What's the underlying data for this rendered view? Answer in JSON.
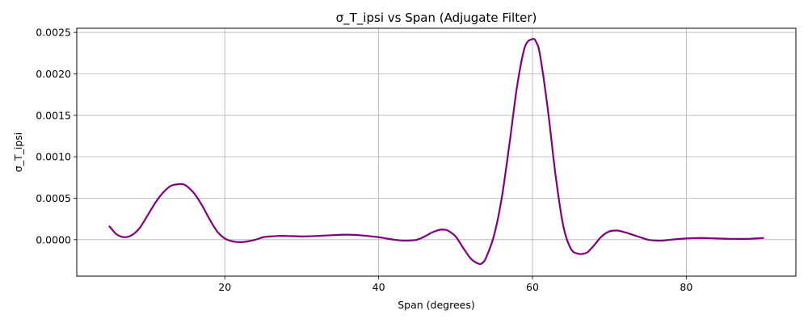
{
  "chart_data": {
    "type": "line",
    "title": "σ_T_ipsi vs Span (Adjugate Filter)",
    "xlabel": "Span (degrees)",
    "ylabel": "σ_T_ipsi",
    "xlim": [
      0.75,
      94.25
    ],
    "ylim": [
      -0.00044,
      0.00255
    ],
    "xticks": [
      20,
      40,
      60,
      80
    ],
    "xtick_labels": [
      "20",
      "40",
      "60",
      "80"
    ],
    "yticks": [
      0.0,
      0.0005,
      0.001,
      0.0015,
      0.002,
      0.0025
    ],
    "ytick_labels": [
      "0.0000",
      "0.0005",
      "0.0010",
      "0.0015",
      "0.0020",
      "0.0025"
    ],
    "grid": true,
    "series": [
      {
        "color": "#800080",
        "x": [
          5,
          6,
          7,
          8,
          9,
          10,
          11,
          12,
          13,
          14,
          14.5,
          15,
          16,
          17,
          18,
          19,
          20,
          21,
          22,
          23,
          24,
          25,
          26,
          27,
          28,
          30,
          32,
          34,
          36,
          38,
          40,
          41,
          42,
          43,
          44,
          45,
          46,
          47,
          48,
          48.5,
          49,
          50,
          51,
          52,
          53,
          53.5,
          54,
          55,
          56,
          57,
          58,
          59,
          60,
          60.5,
          61,
          62,
          63,
          64,
          65,
          66,
          67,
          67.5,
          68,
          69,
          70,
          71,
          72,
          73,
          74,
          75,
          76,
          77,
          78,
          80,
          82,
          84,
          86,
          88,
          90
        ],
        "y": [
          0.00016,
          6e-05,
          3e-05,
          6e-05,
          0.00015,
          0.0003,
          0.00045,
          0.00057,
          0.00065,
          0.00067,
          0.00067,
          0.00065,
          0.00056,
          0.00042,
          0.00025,
          0.0001,
          1.5e-05,
          -2e-05,
          -3e-05,
          -2e-05,
          0.0,
          3e-05,
          4e-05,
          4.5e-05,
          4.5e-05,
          4e-05,
          4.5e-05,
          5.5e-05,
          6e-05,
          5e-05,
          3e-05,
          1.5e-05,
          0.0,
          -1e-05,
          -1e-05,
          0.0,
          4e-05,
          9e-05,
          0.00012,
          0.00012,
          0.00011,
          4e-05,
          -0.0001,
          -0.00023,
          -0.00029,
          -0.00028,
          -0.00021,
          5e-05,
          0.0005,
          0.00115,
          0.00185,
          0.00232,
          0.00242,
          0.00238,
          0.00222,
          0.00157,
          0.00078,
          0.00017,
          -0.00011,
          -0.00017,
          -0.00016,
          -0.00012,
          -7e-05,
          4e-05,
          0.0001,
          0.00011,
          9e-05,
          6e-05,
          3e-05,
          0.0,
          -1e-05,
          -1e-05,
          0.0,
          1.5e-05,
          2e-05,
          1.5e-05,
          1e-05,
          1e-05,
          2e-05
        ]
      }
    ]
  }
}
